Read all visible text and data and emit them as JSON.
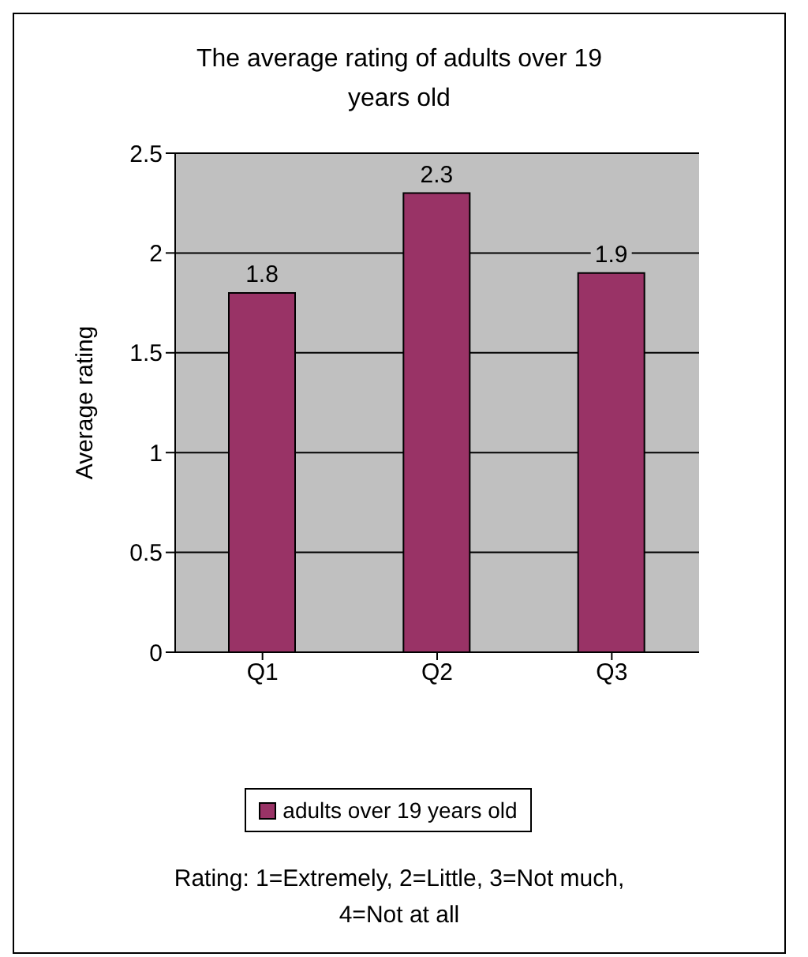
{
  "chart_data": {
    "type": "bar",
    "title": "The average rating of adults over 19 years old",
    "ylabel": "Average rating",
    "categories": [
      "Q1",
      "Q2",
      "Q3"
    ],
    "series": [
      {
        "name": "adults over 19 years old",
        "color": "#993366",
        "values": [
          1.8,
          2.3,
          1.9
        ]
      }
    ],
    "ylim": [
      0,
      2.5
    ],
    "yticks": [
      0,
      0.5,
      1,
      1.5,
      2,
      2.5
    ],
    "grid": "y",
    "legend": "bottom",
    "data_labels": true,
    "annotations": [
      "Rating: 1=Extremely, 2=Little, 3=Not much, 4=Not at all"
    ]
  }
}
